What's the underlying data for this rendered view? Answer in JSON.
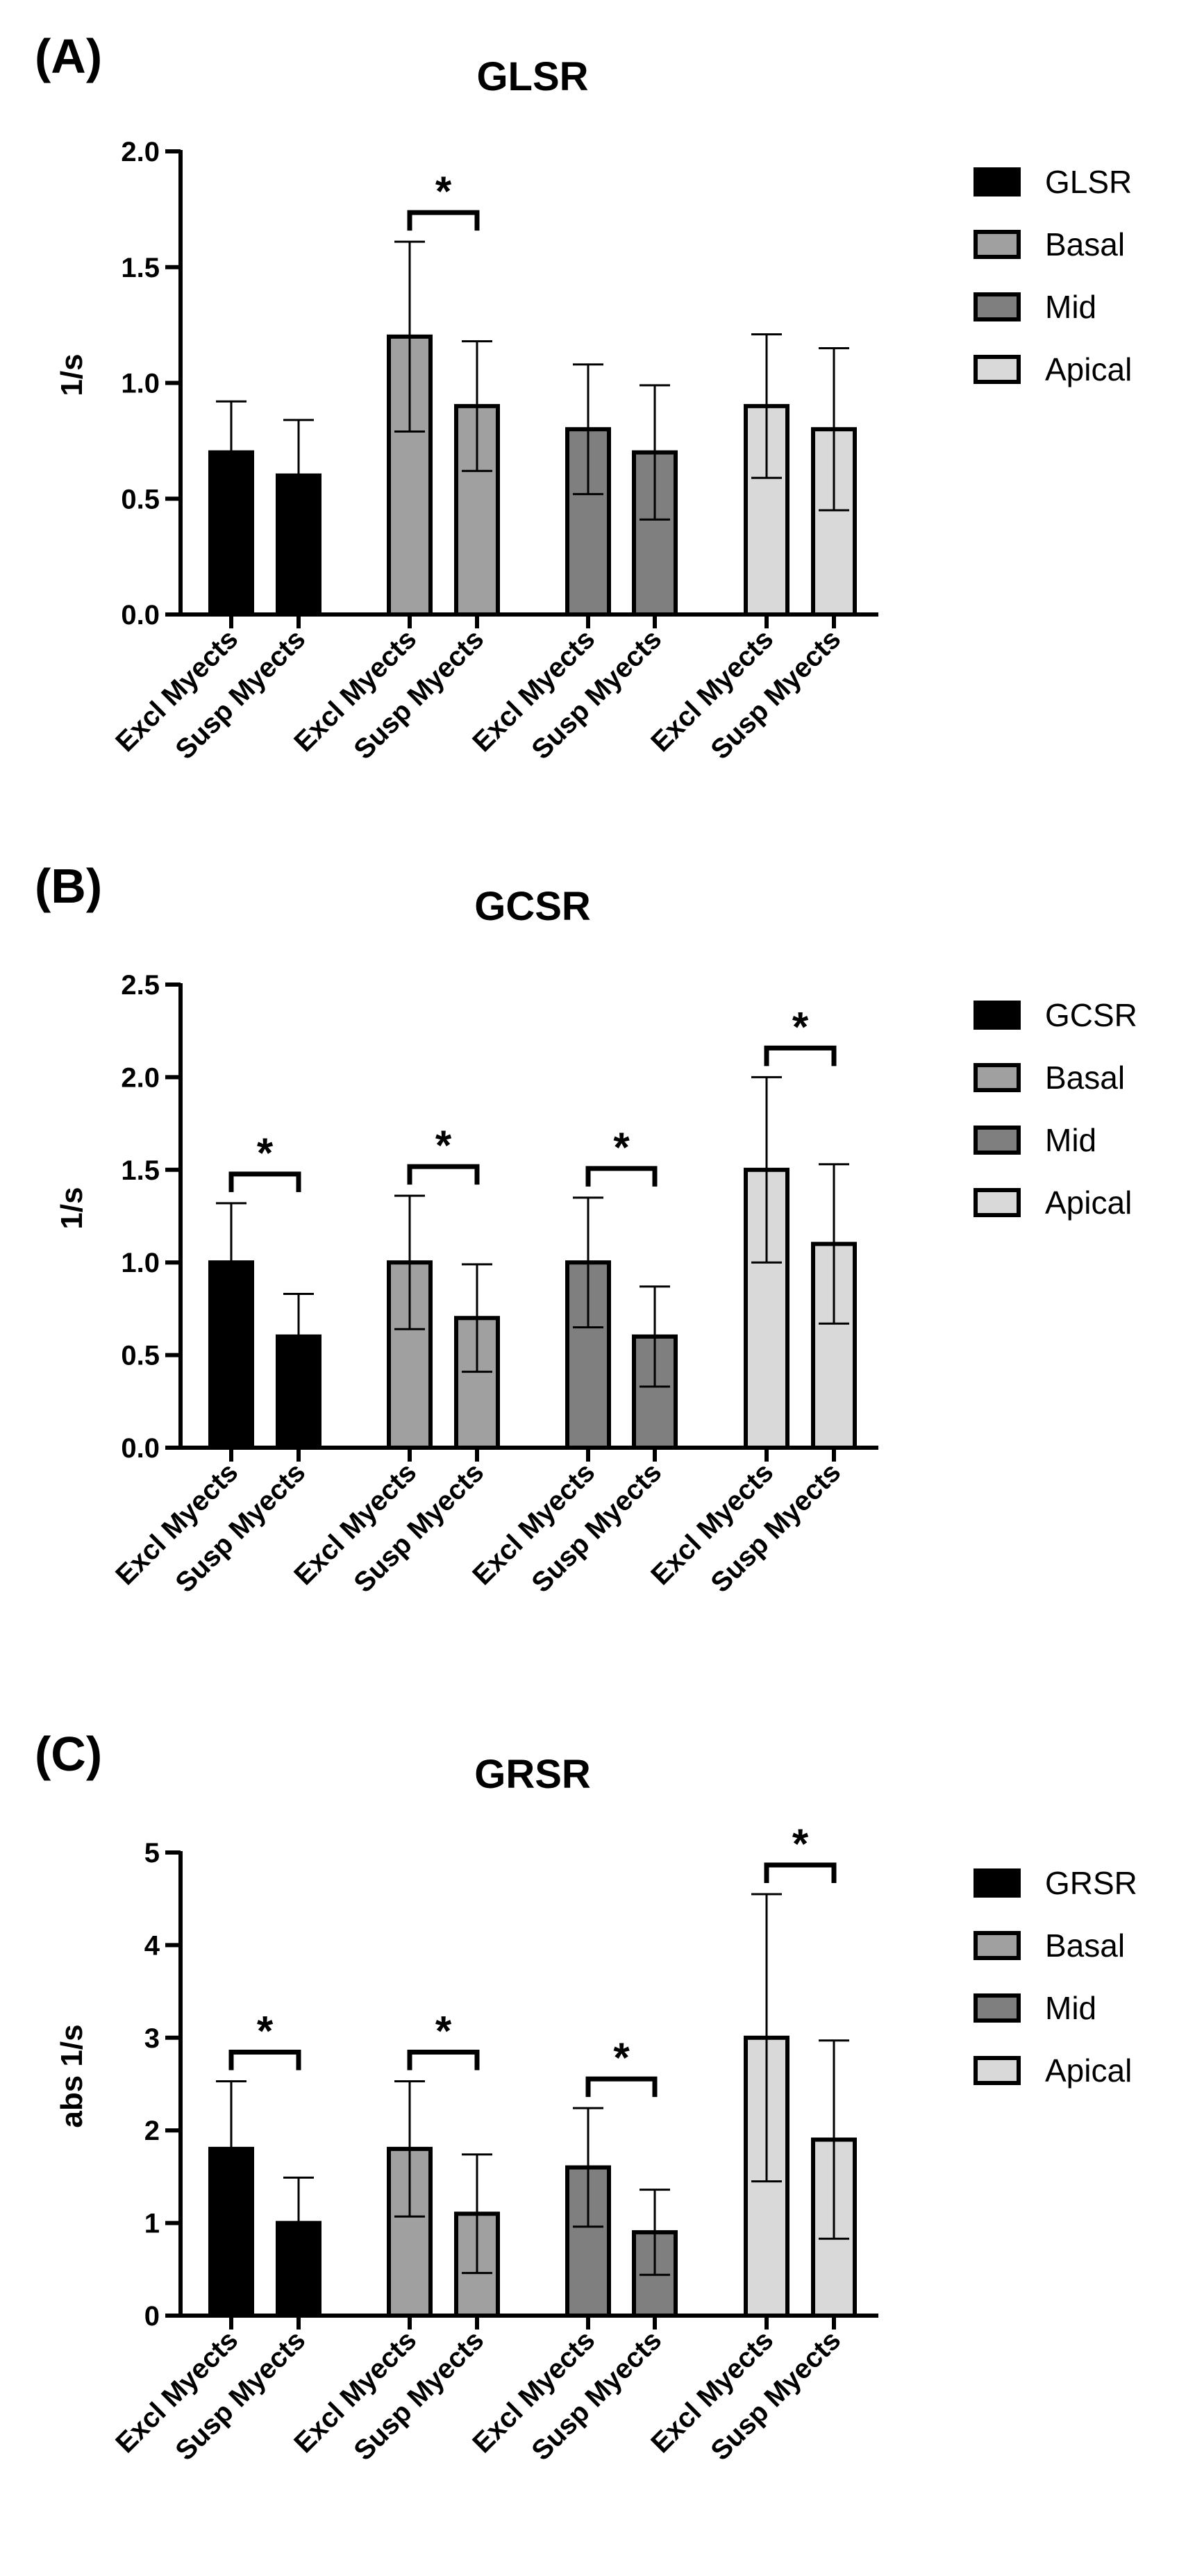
{
  "chart_data": [
    {
      "type": "bar",
      "panel": "(A)",
      "title": "GLSR",
      "ylabel": "1/s",
      "xlabel": "",
      "ylim": [
        0,
        2.0
      ],
      "yticks": [
        "0.0",
        "0.5",
        "1.0",
        "1.5",
        "2.0"
      ],
      "legend_position": "right",
      "legend": [
        {
          "label": "GLSR",
          "color": "#000000"
        },
        {
          "label": "Basal",
          "color": "#a0a0a0"
        },
        {
          "label": "Mid",
          "color": "#7f7f7f"
        },
        {
          "label": "Apical",
          "color": "#d9d9d9"
        }
      ],
      "categories": [
        "Excl Myects",
        "Susp Myects"
      ],
      "groups": [
        {
          "series": "GLSR",
          "values": [
            0.7,
            0.6
          ],
          "errors": [
            0.22,
            0.24
          ],
          "significant": false
        },
        {
          "series": "Basal",
          "values": [
            1.2,
            0.9
          ],
          "errors": [
            0.41,
            0.28
          ],
          "significant": true
        },
        {
          "series": "Mid",
          "values": [
            0.8,
            0.7
          ],
          "errors": [
            0.28,
            0.29
          ],
          "significant": false
        },
        {
          "series": "Apical",
          "values": [
            0.9,
            0.8
          ],
          "errors": [
            0.31,
            0.35
          ],
          "significant": false
        }
      ],
      "significance_label": "*"
    },
    {
      "type": "bar",
      "panel": "(B)",
      "title": "GCSR",
      "ylabel": "1/s",
      "xlabel": "",
      "ylim": [
        0,
        2.5
      ],
      "yticks": [
        "0.0",
        "0.5",
        "1.0",
        "1.5",
        "2.0",
        "2.5"
      ],
      "legend_position": "right",
      "legend": [
        {
          "label": "GCSR",
          "color": "#000000"
        },
        {
          "label": "Basal",
          "color": "#a0a0a0"
        },
        {
          "label": "Mid",
          "color": "#7f7f7f"
        },
        {
          "label": "Apical",
          "color": "#d9d9d9"
        }
      ],
      "categories": [
        "Excl Myects",
        "Susp Myects"
      ],
      "groups": [
        {
          "series": "GCSR",
          "values": [
            1.0,
            0.6
          ],
          "errors": [
            0.32,
            0.23
          ],
          "significant": true
        },
        {
          "series": "Basal",
          "values": [
            1.0,
            0.7
          ],
          "errors": [
            0.36,
            0.29
          ],
          "significant": true
        },
        {
          "series": "Mid",
          "values": [
            1.0,
            0.6
          ],
          "errors": [
            0.35,
            0.27
          ],
          "significant": true
        },
        {
          "series": "Apical",
          "values": [
            1.5,
            1.1
          ],
          "errors": [
            0.5,
            0.43
          ],
          "significant": true
        }
      ],
      "significance_label": "*"
    },
    {
      "type": "bar",
      "panel": "(C)",
      "title": "GRSR",
      "ylabel": "abs 1/s",
      "xlabel": "",
      "ylim": [
        0,
        5
      ],
      "yticks": [
        "0",
        "1",
        "2",
        "3",
        "4",
        "5"
      ],
      "legend_position": "right",
      "legend": [
        {
          "label": "GRSR",
          "color": "#000000"
        },
        {
          "label": "Basal",
          "color": "#a0a0a0"
        },
        {
          "label": "Mid",
          "color": "#7f7f7f"
        },
        {
          "label": "Apical",
          "color": "#d9d9d9"
        }
      ],
      "categories": [
        "Excl Myects",
        "Susp Myects"
      ],
      "groups": [
        {
          "series": "GRSR",
          "values": [
            1.8,
            1.0
          ],
          "errors": [
            0.73,
            0.49
          ],
          "significant": true
        },
        {
          "series": "Basal",
          "values": [
            1.8,
            1.1
          ],
          "errors": [
            0.73,
            0.64
          ],
          "significant": true
        },
        {
          "series": "Mid",
          "values": [
            1.6,
            0.9
          ],
          "errors": [
            0.64,
            0.46
          ],
          "significant": true
        },
        {
          "series": "Apical",
          "values": [
            3.0,
            1.9
          ],
          "errors": [
            1.55,
            1.07
          ],
          "significant": true
        }
      ],
      "significance_label": "*"
    }
  ]
}
